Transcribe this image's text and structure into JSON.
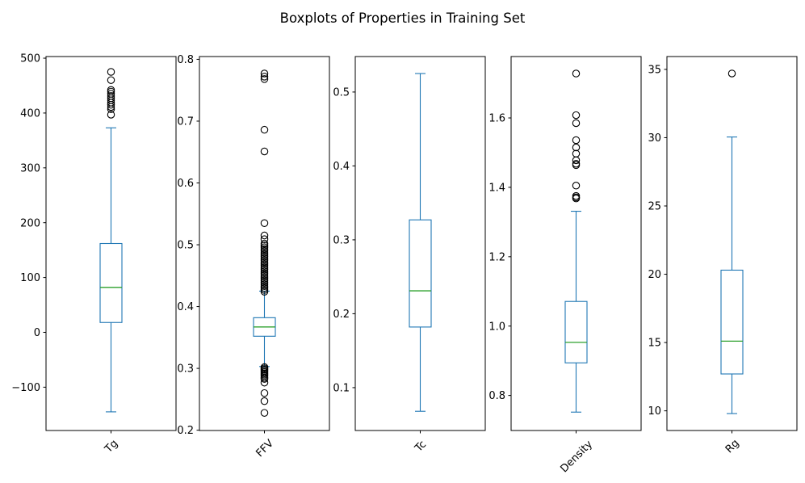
{
  "figure": {
    "title": "Boxplots of Properties in Training Set"
  },
  "chart_data": {
    "type": "boxplot",
    "title": "Boxplots of Properties in Training Set",
    "layout_hint": "1x5 grid of vertical boxplots, no gridlines, x tick labels rotated 45 degrees",
    "colors": {
      "box": "#1f77b4",
      "median": "#2ca02c",
      "outlier": "#000000",
      "axis": "#000000",
      "background": "#ffffff"
    },
    "subplots": [
      {
        "xlabel": "Tg",
        "ylim": [
          -179,
          503
        ],
        "yticks": [
          {
            "value": -100,
            "label": "−100"
          },
          {
            "value": 0,
            "label": "0"
          },
          {
            "value": 100,
            "label": "100"
          },
          {
            "value": 200,
            "label": "200"
          },
          {
            "value": 300,
            "label": "300"
          },
          {
            "value": 400,
            "label": "400"
          },
          {
            "value": 500,
            "label": "500"
          }
        ],
        "box": {
          "whislo": -145,
          "q1": 18,
          "med": 82,
          "q3": 162,
          "whishi": 373
        },
        "outliers": [
          397,
          407,
          411,
          415,
          419,
          423,
          427,
          431,
          435,
          439,
          442,
          460,
          475
        ]
      },
      {
        "xlabel": "FFV",
        "ylim": [
          0.1995,
          0.8045
        ],
        "yticks": [
          {
            "value": 0.2,
            "label": "0.2"
          },
          {
            "value": 0.3,
            "label": "0.3"
          },
          {
            "value": 0.4,
            "label": "0.4"
          },
          {
            "value": 0.5,
            "label": "0.5"
          },
          {
            "value": 0.6,
            "label": "0.6"
          },
          {
            "value": 0.7,
            "label": "0.7"
          },
          {
            "value": 0.8,
            "label": "0.8"
          }
        ],
        "box": {
          "whislo": 0.303,
          "q1": 0.352,
          "med": 0.367,
          "q3": 0.382,
          "whishi": 0.425
        },
        "outliers": [
          0.228,
          0.247,
          0.26,
          0.277,
          0.283,
          0.285,
          0.288,
          0.29,
          0.292,
          0.294,
          0.296,
          0.298,
          0.3,
          0.302,
          0.424,
          0.427,
          0.43,
          0.433,
          0.436,
          0.439,
          0.442,
          0.445,
          0.448,
          0.451,
          0.454,
          0.457,
          0.46,
          0.463,
          0.466,
          0.469,
          0.472,
          0.475,
          0.478,
          0.481,
          0.484,
          0.487,
          0.49,
          0.493,
          0.496,
          0.499,
          0.502,
          0.509,
          0.515,
          0.535,
          0.651,
          0.686,
          0.768,
          0.772,
          0.777
        ]
      },
      {
        "xlabel": "Tc",
        "ylim": [
          0.042,
          0.548
        ],
        "yticks": [
          {
            "value": 0.1,
            "label": "0.1"
          },
          {
            "value": 0.2,
            "label": "0.2"
          },
          {
            "value": 0.3,
            "label": "0.3"
          },
          {
            "value": 0.4,
            "label": "0.4"
          },
          {
            "value": 0.5,
            "label": "0.5"
          }
        ],
        "box": {
          "whislo": 0.068,
          "q1": 0.182,
          "med": 0.231,
          "q3": 0.327,
          "whishi": 0.525
        },
        "outliers": []
      },
      {
        "xlabel": "Density",
        "ylim": [
          0.699,
          1.777
        ],
        "yticks": [
          {
            "value": 0.8,
            "label": "0.8"
          },
          {
            "value": 1.0,
            "label": "1.0"
          },
          {
            "value": 1.2,
            "label": "1.2"
          },
          {
            "value": 1.4,
            "label": "1.4"
          },
          {
            "value": 1.6,
            "label": "1.6"
          }
        ],
        "box": {
          "whislo": 0.752,
          "q1": 0.894,
          "med": 0.953,
          "q3": 1.071,
          "whishi": 1.331
        },
        "outliers": [
          1.368,
          1.371,
          1.375,
          1.405,
          1.464,
          1.468,
          1.478,
          1.497,
          1.515,
          1.536,
          1.585,
          1.608,
          1.728
        ]
      },
      {
        "xlabel": "Rg",
        "ylim": [
          8.56,
          35.94
        ],
        "yticks": [
          {
            "value": 10,
            "label": "10"
          },
          {
            "value": 15,
            "label": "15"
          },
          {
            "value": 20,
            "label": "20"
          },
          {
            "value": 25,
            "label": "25"
          },
          {
            "value": 30,
            "label": "30"
          },
          {
            "value": 35,
            "label": "35"
          }
        ],
        "box": {
          "whislo": 9.8,
          "q1": 12.7,
          "med": 15.1,
          "q3": 20.3,
          "whishi": 30.05
        },
        "outliers": [
          34.7
        ]
      }
    ]
  }
}
